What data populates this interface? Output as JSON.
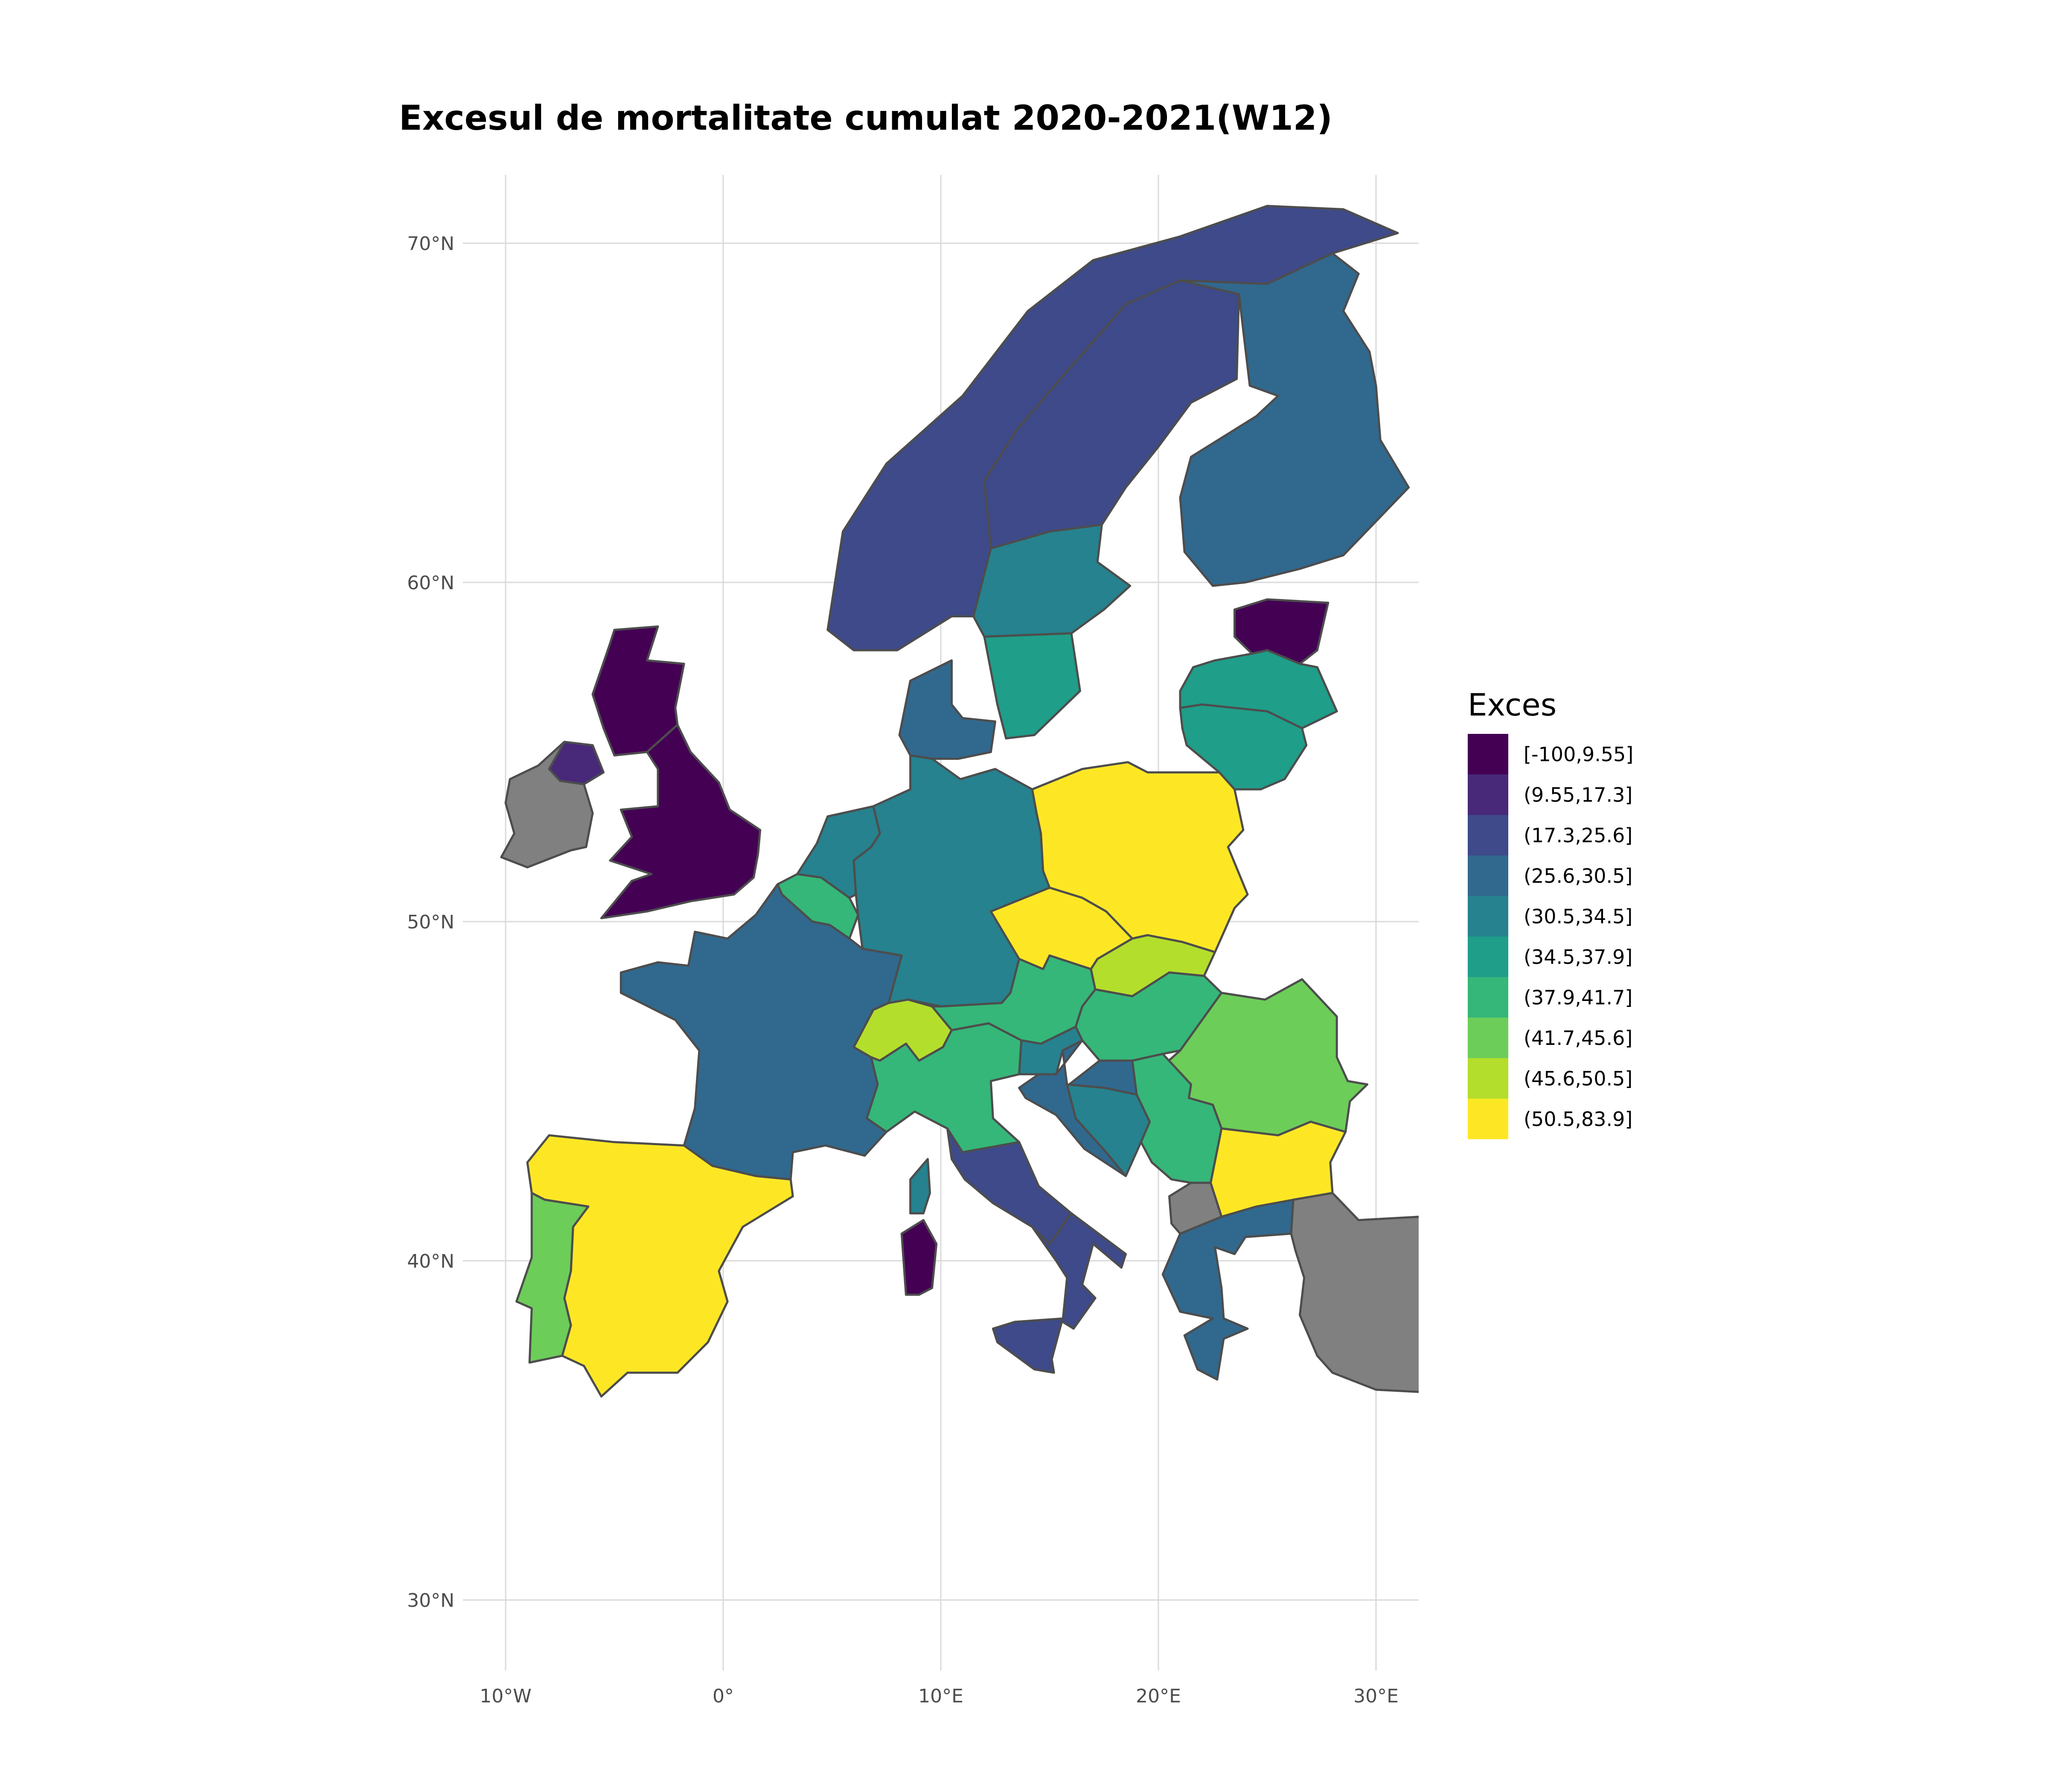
{
  "title": "Excesul de mortalitate cumulat 2020-2021(W12)",
  "axes": {
    "x_ticks": [
      {
        "value": -10,
        "label": "10°W"
      },
      {
        "value": 0,
        "label": "0°"
      },
      {
        "value": 10,
        "label": "10°E"
      },
      {
        "value": 20,
        "label": "20°E"
      },
      {
        "value": 30,
        "label": "30°E"
      }
    ],
    "y_ticks": [
      {
        "value": 70,
        "label": "70°N"
      },
      {
        "value": 60,
        "label": "60°N"
      },
      {
        "value": 50,
        "label": "50°N"
      },
      {
        "value": 40,
        "label": "40°N"
      },
      {
        "value": 30,
        "label": "30°N"
      }
    ]
  },
  "legend": {
    "title": "Exces",
    "items": [
      {
        "label": "[-100,9.55]",
        "color": "#440154"
      },
      {
        "label": "(9.55,17.3]",
        "color": "#482878"
      },
      {
        "label": "(17.3,25.6]",
        "color": "#3E4A89"
      },
      {
        "label": "(25.6,30.5]",
        "color": "#31688E"
      },
      {
        "label": "(30.5,34.5]",
        "color": "#26828E"
      },
      {
        "label": "(34.5,37.9]",
        "color": "#1F9E89"
      },
      {
        "label": "(37.9,41.7]",
        "color": "#35B779"
      },
      {
        "label": "(41.7,45.6]",
        "color": "#6DCD59"
      },
      {
        "label": "(45.6,50.5]",
        "color": "#B4DE2C"
      },
      {
        "label": "(50.5,83.9]",
        "color": "#FDE725"
      }
    ],
    "no_data_color": "#808080"
  },
  "regions": [
    {
      "name": "Norway",
      "class": 2
    },
    {
      "name": "Sweden north",
      "class": 2
    },
    {
      "name": "Sweden central",
      "class": 4
    },
    {
      "name": "Sweden south",
      "class": 5
    },
    {
      "name": "Finland",
      "class": 3
    },
    {
      "name": "Estonia",
      "class": 0
    },
    {
      "name": "Latvia",
      "class": 5
    },
    {
      "name": "Lithuania",
      "class": 5
    },
    {
      "name": "Scotland",
      "class": 0
    },
    {
      "name": "England & Wales",
      "class": 0
    },
    {
      "name": "Northern Ireland",
      "class": 1
    },
    {
      "name": "Ireland",
      "class": -1
    },
    {
      "name": "Denmark",
      "class": 3
    },
    {
      "name": "Netherlands",
      "class": 4
    },
    {
      "name": "Belgium",
      "class": 6
    },
    {
      "name": "Germany",
      "class": 4
    },
    {
      "name": "Poland",
      "class": 9
    },
    {
      "name": "Czechia",
      "class": 9
    },
    {
      "name": "France",
      "class": 3
    },
    {
      "name": "Switzerland",
      "class": 8
    },
    {
      "name": "Austria",
      "class": 6
    },
    {
      "name": "Slovakia",
      "class": 8
    },
    {
      "name": "Hungary",
      "class": 6
    },
    {
      "name": "Romania",
      "class": 7
    },
    {
      "name": "Bulgaria",
      "class": 9
    },
    {
      "name": "Serbia",
      "class": 6
    },
    {
      "name": "Croatia",
      "class": 3
    },
    {
      "name": "Slovenia",
      "class": 4
    },
    {
      "name": "Bosnia",
      "class": 4
    },
    {
      "name": "Italy north",
      "class": 6
    },
    {
      "name": "Italy central",
      "class": 2
    },
    {
      "name": "Italy south",
      "class": 2
    },
    {
      "name": "Sicily",
      "class": 2
    },
    {
      "name": "Sardinia",
      "class": 0
    },
    {
      "name": "Corsica",
      "class": 4
    },
    {
      "name": "Spain",
      "class": 9
    },
    {
      "name": "Portugal",
      "class": 7
    },
    {
      "name": "Greece",
      "class": 3
    },
    {
      "name": "North Macedonia",
      "class": -1
    },
    {
      "name": "Turkey",
      "class": -1
    }
  ]
}
